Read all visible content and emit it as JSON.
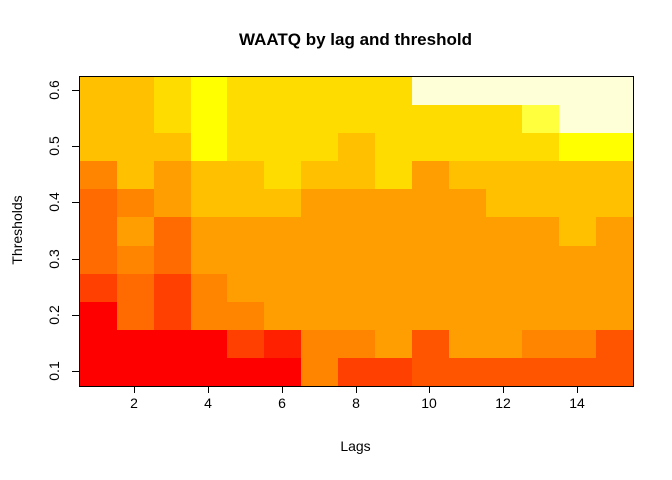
{
  "figure": {
    "title": "WAATQ by lag and threshold",
    "xlabel": "Lags",
    "ylabel": "Thresholds"
  },
  "chart_data": {
    "type": "heatmap",
    "title": "WAATQ by lag and threshold",
    "xlabel": "Lags",
    "ylabel": "Thresholds",
    "x_range": [
      0.5,
      15.5
    ],
    "y_range": [
      0.075,
      0.625
    ],
    "x_tick_labels": [
      "2",
      "4",
      "6",
      "8",
      "10",
      "12",
      "14"
    ],
    "x_tick_values": [
      2,
      4,
      6,
      8,
      10,
      12,
      14
    ],
    "y_tick_labels": [
      "0.1",
      "0.2",
      "0.3",
      "0.4",
      "0.5",
      "0.6"
    ],
    "y_tick_values": [
      0.1,
      0.2,
      0.3,
      0.4,
      0.5,
      0.6
    ],
    "lags": [
      1,
      2,
      3,
      4,
      5,
      6,
      7,
      8,
      9,
      10,
      11,
      12,
      13,
      14,
      15
    ],
    "thresholds_top_to_bottom": [
      0.6,
      0.55,
      0.5,
      0.45,
      0.4,
      0.35,
      0.3,
      0.25,
      0.2,
      0.15,
      0.1
    ],
    "palette_name": "heat-colors",
    "palette": [
      "#FF0000",
      "#FF2000",
      "#FF4000",
      "#FF5500",
      "#FF6B00",
      "#FF8400",
      "#FF9E00",
      "#FFC000",
      "#FFDC00",
      "#FFFF00",
      "#FFFF3D",
      "#FFFFD7"
    ],
    "grid_palette_indices_top_to_bottom": [
      [
        8,
        8,
        9,
        10,
        9,
        9,
        9,
        9,
        9,
        12,
        12,
        12,
        12,
        12,
        12
      ],
      [
        8,
        8,
        9,
        10,
        9,
        9,
        9,
        9,
        9,
        9,
        9,
        9,
        11,
        12,
        12
      ],
      [
        8,
        8,
        8,
        10,
        9,
        9,
        9,
        8,
        9,
        9,
        9,
        9,
        9,
        10,
        10
      ],
      [
        6,
        8,
        7,
        8,
        8,
        9,
        8,
        8,
        9,
        7,
        8,
        8,
        8,
        8,
        8
      ],
      [
        5,
        6,
        7,
        8,
        8,
        8,
        7,
        7,
        7,
        7,
        7,
        8,
        8,
        8,
        8
      ],
      [
        5,
        7,
        5,
        7,
        7,
        7,
        7,
        7,
        7,
        7,
        7,
        7,
        7,
        8,
        7
      ],
      [
        5,
        6,
        5,
        7,
        7,
        7,
        7,
        7,
        7,
        7,
        7,
        7,
        7,
        7,
        7
      ],
      [
        3,
        5,
        3,
        6,
        7,
        7,
        7,
        7,
        7,
        7,
        7,
        7,
        7,
        7,
        7
      ],
      [
        1,
        5,
        3,
        6,
        6,
        7,
        7,
        7,
        7,
        7,
        7,
        7,
        7,
        7,
        7
      ],
      [
        1,
        1,
        1,
        1,
        3,
        2,
        6,
        6,
        7,
        4,
        7,
        7,
        6,
        6,
        4
      ],
      [
        1,
        1,
        1,
        1,
        1,
        1,
        6,
        3,
        3,
        4,
        4,
        4,
        4,
        4,
        4
      ]
    ],
    "legend": "none",
    "grid_lines": "off"
  }
}
